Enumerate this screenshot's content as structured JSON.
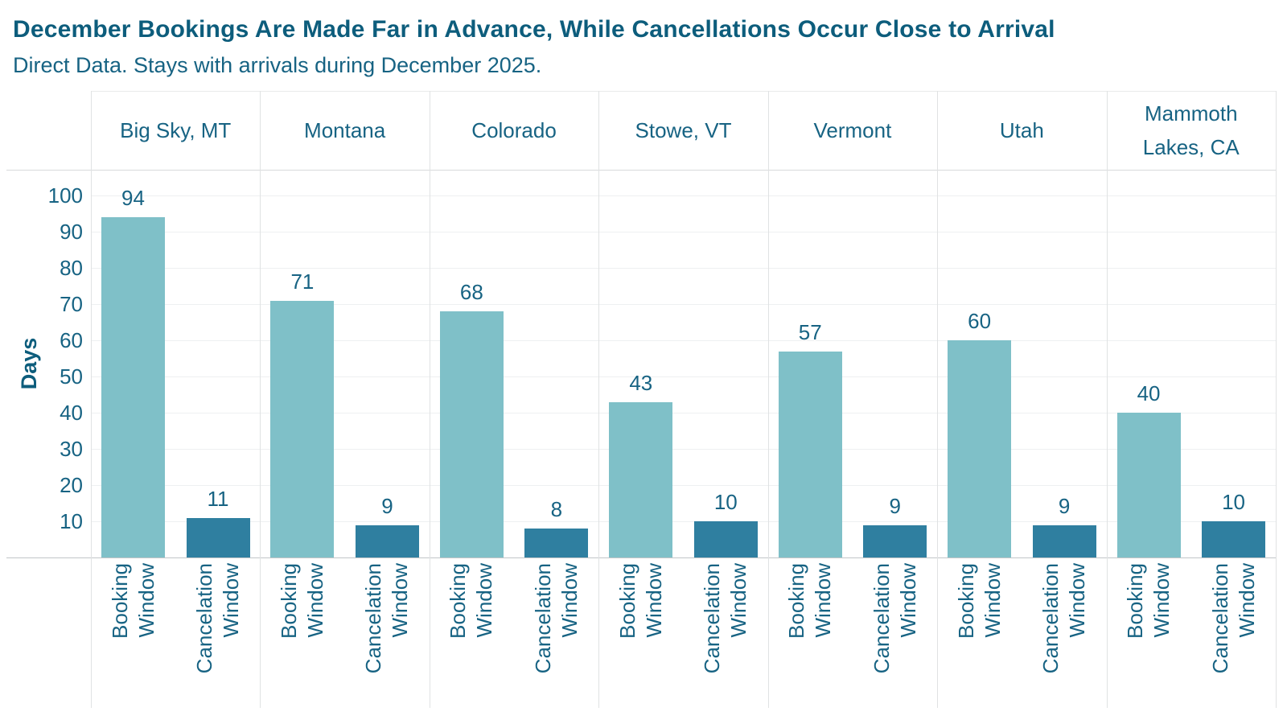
{
  "title": "December Bookings Are Made Far in Advance, While Cancellations Occur Close to Arrival",
  "subtitle": "Direct Data. Stays with arrivals during December 2025.",
  "colors": {
    "title_text": "#0d5d7c",
    "label_text": "#176383",
    "booking_bar": "#7fc0c8",
    "cancelation_bar": "#2f7fa0",
    "gridline": "#eef0f1",
    "column_separator": "#e0e2e3",
    "header_separator": "#d8dadb",
    "baseline": "#c2c6c8",
    "top_border": "#e9eaeb"
  },
  "chart_data": {
    "type": "bar",
    "title": "December Bookings Are Made Far in Advance, While Cancellations Occur Close to Arrival",
    "subtitle": "Direct Data. Stays with arrivals during December 2025.",
    "xlabel": "",
    "ylabel": "Days",
    "yticks": [
      10,
      20,
      30,
      40,
      50,
      60,
      70,
      80,
      90,
      100
    ],
    "ylim": [
      0,
      107
    ],
    "grid": true,
    "legend": false,
    "categories": [
      "Big Sky, MT",
      "Montana",
      "Colorado",
      "Stowe, VT",
      "Vermont",
      "Utah",
      "Mammoth Lakes, CA"
    ],
    "series": [
      {
        "name": "Booking Window",
        "label_lines": [
          "Booking",
          "Window"
        ],
        "values": [
          94,
          71,
          68,
          43,
          57,
          60,
          40
        ]
      },
      {
        "name": "Cancelation Window",
        "label_lines": [
          "Cancelation",
          "Window"
        ],
        "values": [
          11,
          9,
          8,
          10,
          9,
          9,
          10
        ]
      }
    ]
  }
}
